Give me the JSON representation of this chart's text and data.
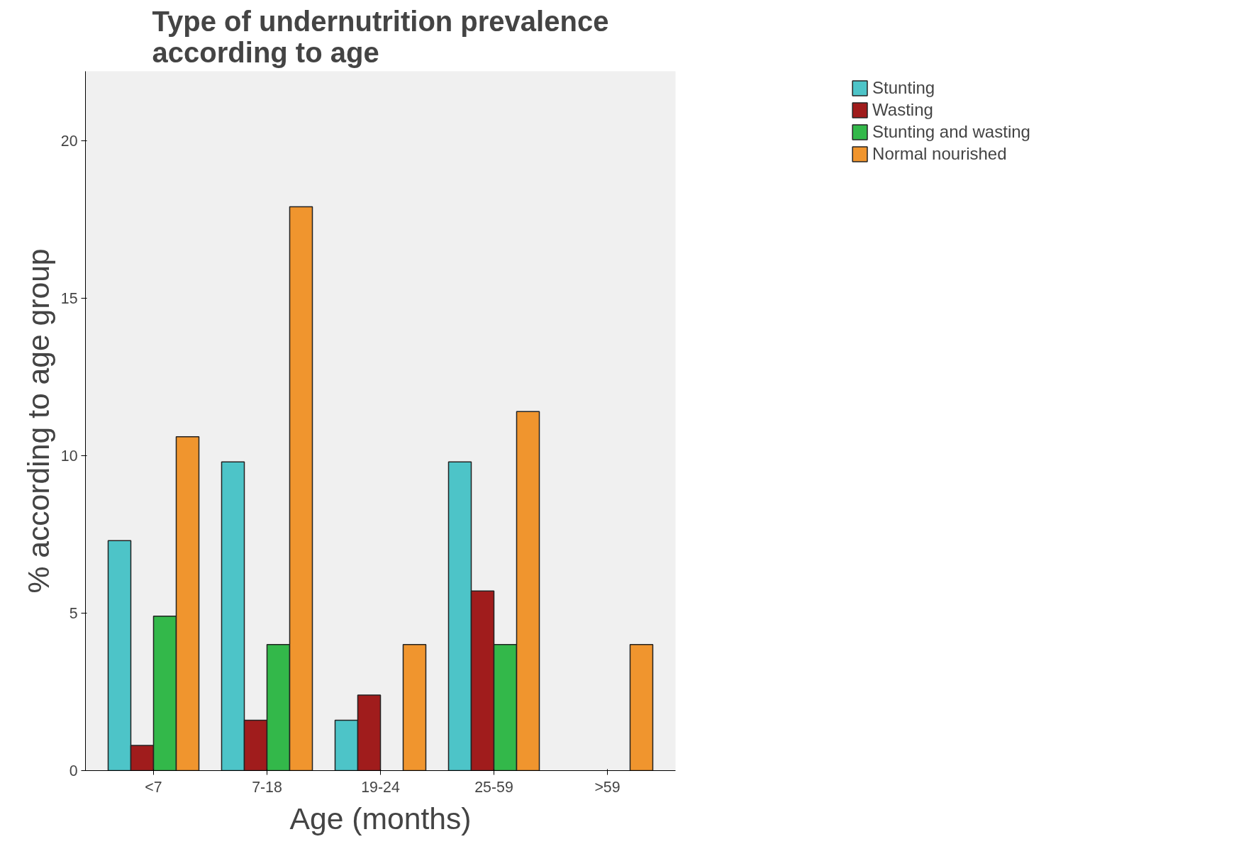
{
  "chart_data": {
    "type": "bar",
    "title": "Type of undernutrition prevalence\naccording to age",
    "xlabel": "Age (months)",
    "ylabel": "% according to age group",
    "categories": [
      "<7",
      "7-18",
      "19-24",
      "25-59",
      ">59"
    ],
    "series": [
      {
        "name": "Stunting",
        "color": "#4dc4c8",
        "values": [
          7.3,
          9.8,
          1.6,
          9.8,
          null
        ]
      },
      {
        "name": "Wasting",
        "color": "#a01c1c",
        "values": [
          0.8,
          1.6,
          2.4,
          5.7,
          null
        ]
      },
      {
        "name": "Stunting and wasting",
        "color": "#33b84a",
        "values": [
          4.9,
          4.0,
          null,
          4.0,
          null
        ]
      },
      {
        "name": "Normal nourished",
        "color": "#f0952e",
        "values": [
          10.6,
          17.9,
          4.0,
          11.4,
          4.0
        ]
      }
    ],
    "ylim": [
      0,
      22.2
    ],
    "yticks": [
      0,
      5,
      10,
      15,
      20
    ],
    "grid": false,
    "legend": "top right"
  }
}
